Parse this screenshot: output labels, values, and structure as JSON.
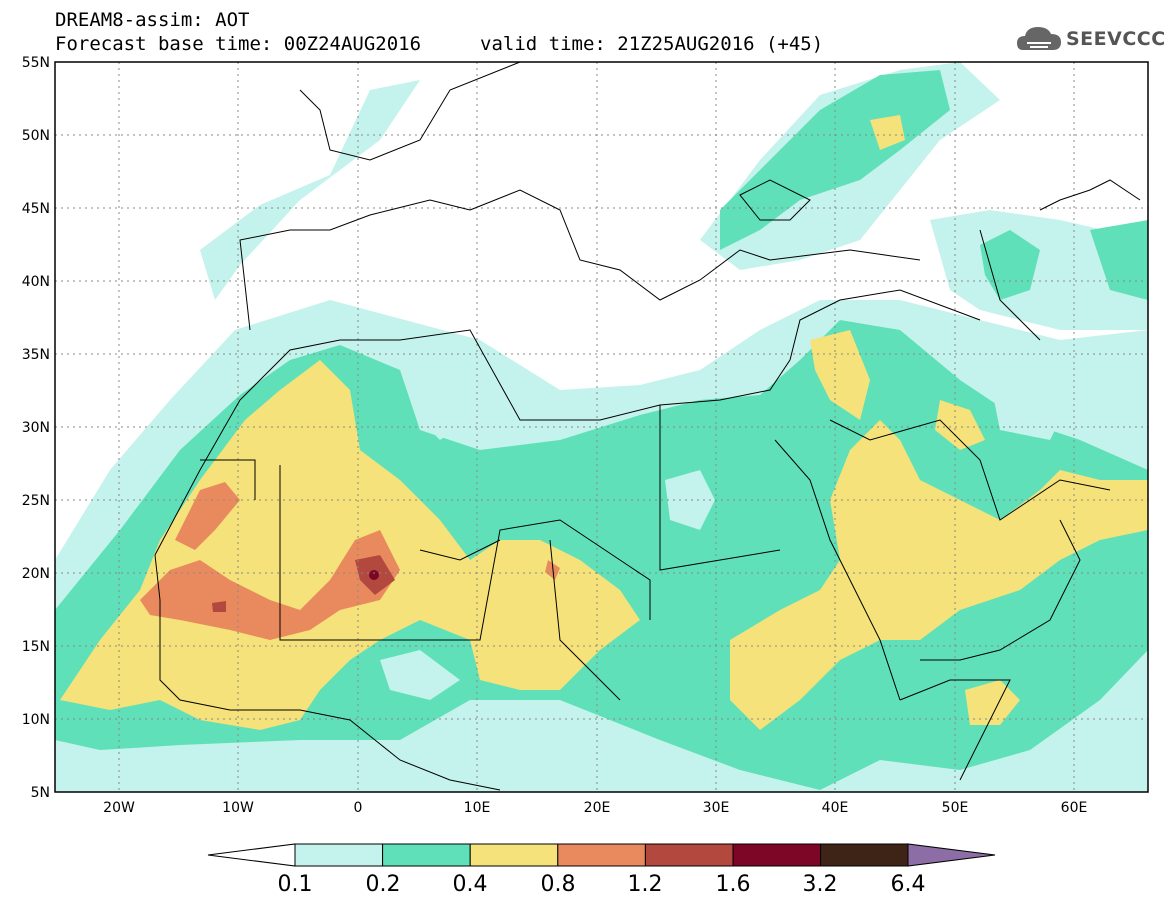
{
  "header": {
    "title_line1": "DREAM8-assim: AOT",
    "title_line2": "Forecast base time: 00Z24AUG2016",
    "valid_time": "valid time: 21Z25AUG2016 (+45)",
    "logo_text": "SEEVCCC",
    "logo_icon": "cloud-logo-icon"
  },
  "map": {
    "lat_labels": [
      "55N",
      "50N",
      "45N",
      "40N",
      "35N",
      "30N",
      "25N",
      "20N",
      "15N",
      "10N",
      "5N"
    ],
    "lon_labels": [
      "20W",
      "10W",
      "0",
      "10E",
      "20E",
      "30E",
      "40E",
      "50E",
      "60E"
    ],
    "lat_range": [
      5,
      55
    ],
    "lon_range": [
      -25,
      65
    ]
  },
  "colorbar": {
    "colors": [
      "#c4f2ec",
      "#5fe0b8",
      "#f5e27a",
      "#e98a5e",
      "#b2483e",
      "#7d0525",
      "#3e2416",
      "#8d6da6"
    ],
    "labels": [
      "0.1",
      "0.2",
      "0.4",
      "0.8",
      "1.2",
      "1.6",
      "3.2",
      "6.4"
    ]
  }
}
